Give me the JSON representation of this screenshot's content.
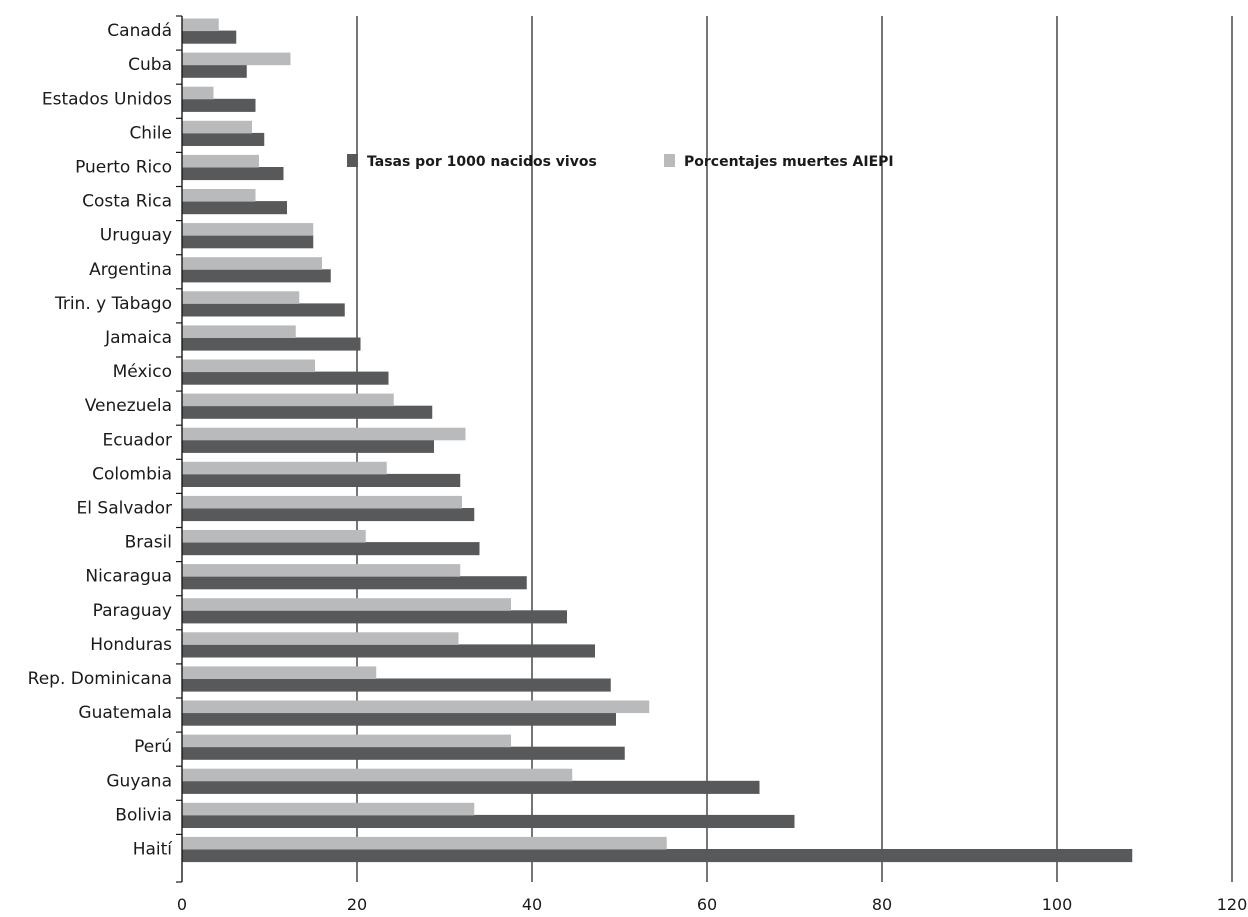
{
  "chart_data": {
    "type": "bar",
    "orientation": "horizontal",
    "title": "",
    "xlabel": "",
    "ylabel": "",
    "xlim": [
      0,
      120
    ],
    "x_ticks": [
      0,
      20,
      40,
      60,
      80,
      100,
      120
    ],
    "grid": "vertical",
    "legend_position": "top-center",
    "categories": [
      "Canadá",
      "Cuba",
      "Estados Unidos",
      "Chile",
      "Puerto Rico",
      "Costa Rica",
      "Uruguay",
      "Argentina",
      "Trin. y Tabago",
      "Jamaica",
      "México",
      "Venezuela",
      "Ecuador",
      "Colombia",
      "El Salvador",
      "Brasil",
      "Nicaragua",
      "Paraguay",
      "Honduras",
      "Rep. Dominicana",
      "Guatemala",
      "Perú",
      "Guyana",
      "Bolivia",
      "Haití"
    ],
    "series": [
      {
        "name": "Tasas por 1000 nacidos vivos",
        "color": "#58595b",
        "values": [
          6.2,
          7.4,
          8.4,
          9.4,
          11.6,
          12.0,
          15.0,
          17.0,
          18.6,
          20.4,
          23.6,
          28.6,
          28.8,
          31.8,
          33.4,
          34.0,
          39.4,
          44.0,
          47.2,
          49.0,
          49.6,
          50.6,
          66.0,
          70.0,
          108.6
        ]
      },
      {
        "name": "Porcentajes muertes AIEPI",
        "color": "#b9babc",
        "values": [
          4.2,
          12.4,
          3.6,
          8.0,
          8.8,
          8.4,
          15.0,
          16.0,
          13.4,
          13.0,
          15.2,
          24.2,
          32.4,
          23.4,
          32.0,
          21.0,
          31.8,
          37.6,
          31.6,
          22.2,
          53.4,
          37.6,
          44.6,
          33.4,
          55.4
        ]
      }
    ]
  }
}
